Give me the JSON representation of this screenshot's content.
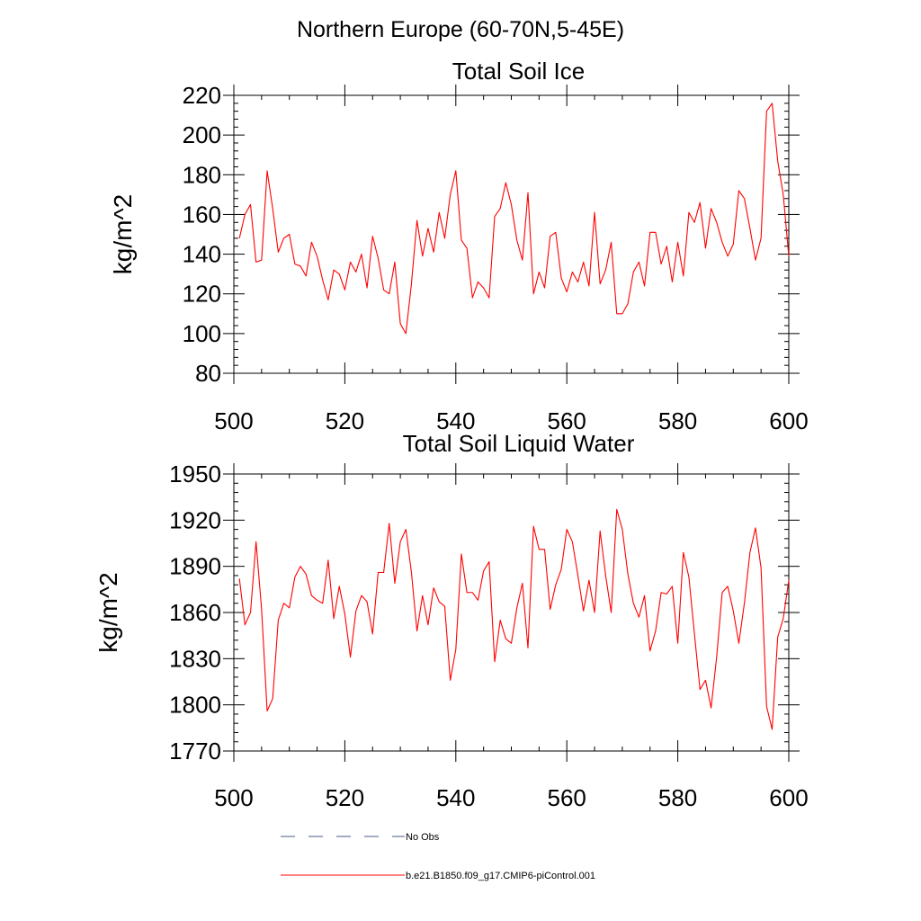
{
  "figure": {
    "suptitle": "Northern Europe (60-70N,5-45E)"
  },
  "legend": {
    "items": [
      {
        "label": "No Obs",
        "color": "#4a5a8a",
        "dash": true
      },
      {
        "label": "b.e21.B1850.f09_g17.CMIP6-piControl.001",
        "color": "#ff0000",
        "dash": false
      }
    ]
  },
  "chart_data": [
    {
      "type": "line",
      "title": "Total Soil Ice",
      "ylabel": "kg/m^2",
      "xlabel": "",
      "xlim": [
        500,
        600
      ],
      "ylim": [
        80,
        220
      ],
      "x_ticks": [
        500,
        520,
        540,
        560,
        580,
        600
      ],
      "y_ticks": [
        80,
        100,
        120,
        140,
        160,
        180,
        200,
        220
      ],
      "grid": false,
      "series": [
        {
          "color": "#ff0000",
          "x_start": 501,
          "x_step": 1,
          "values": [
            148,
            160,
            165,
            136,
            137,
            182,
            163,
            141,
            148,
            150,
            135,
            134,
            129,
            146,
            139,
            127,
            117,
            132,
            130,
            122,
            136,
            131,
            140,
            123,
            149,
            138,
            122,
            120,
            136,
            105,
            100,
            125,
            157,
            139,
            153,
            141,
            161,
            148,
            170,
            182,
            147,
            143,
            118,
            126,
            123,
            118,
            159,
            163,
            176,
            165,
            147,
            137,
            171,
            120,
            131,
            123,
            149,
            151,
            128,
            121,
            131,
            126,
            136,
            124,
            161,
            125,
            132,
            146,
            110,
            110,
            115,
            131,
            136,
            124,
            151,
            151,
            135,
            144,
            126,
            146,
            129,
            161,
            156,
            166,
            143,
            163,
            156,
            146,
            139,
            145,
            172,
            168,
            153,
            137,
            148,
            212,
            216,
            187,
            170,
            139
          ]
        }
      ]
    },
    {
      "type": "line",
      "title": "Total Soil Liquid Water",
      "ylabel": "kg/m^2",
      "xlabel": "",
      "xlim": [
        500,
        600
      ],
      "ylim": [
        1770,
        1950
      ],
      "x_ticks": [
        500,
        520,
        540,
        560,
        580,
        600
      ],
      "y_ticks": [
        1770,
        1800,
        1830,
        1860,
        1890,
        1920,
        1950
      ],
      "grid": false,
      "series": [
        {
          "color": "#ff0000",
          "x_start": 501,
          "x_step": 1,
          "values": [
            1882,
            1852,
            1860,
            1906,
            1862,
            1796,
            1804,
            1855,
            1866,
            1863,
            1883,
            1890,
            1885,
            1871,
            1868,
            1866,
            1894,
            1856,
            1877,
            1859,
            1831,
            1861,
            1871,
            1867,
            1846,
            1886,
            1886,
            1918,
            1879,
            1906,
            1914,
            1886,
            1848,
            1871,
            1852,
            1876,
            1867,
            1864,
            1816,
            1836,
            1898,
            1873,
            1873,
            1868,
            1887,
            1893,
            1828,
            1855,
            1843,
            1840,
            1863,
            1879,
            1837,
            1916,
            1901,
            1901,
            1862,
            1878,
            1888,
            1914,
            1906,
            1884,
            1861,
            1881,
            1860,
            1913,
            1884,
            1860,
            1927,
            1914,
            1885,
            1866,
            1857,
            1871,
            1835,
            1848,
            1873,
            1872,
            1877,
            1840,
            1899,
            1883,
            1846,
            1810,
            1816,
            1798,
            1831,
            1873,
            1877,
            1861,
            1840,
            1866,
            1899,
            1915,
            1889,
            1799,
            1784,
            1844,
            1856,
            1881
          ]
        }
      ]
    }
  ]
}
